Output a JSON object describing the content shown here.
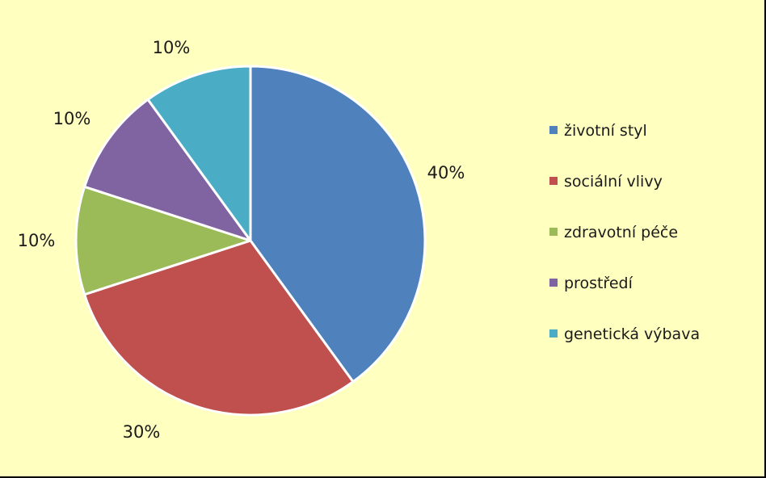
{
  "chart_data": {
    "type": "pie",
    "categories": [
      "životní styl",
      "sociální vlivy",
      "zdravotní péče",
      "prostředí",
      "genetická výbava"
    ],
    "values": [
      40,
      30,
      10,
      10,
      10
    ],
    "data_labels": [
      "40%",
      "30%",
      "10%",
      "10%",
      "10%"
    ],
    "colors": [
      "#4F81BD",
      "#C0504D",
      "#9BBB59",
      "#8064A2",
      "#4BACC6"
    ],
    "legend_position": "right",
    "start_angle": "top, clockwise"
  },
  "colors": {
    "background": "#FFFFC0",
    "border": "#000000"
  }
}
